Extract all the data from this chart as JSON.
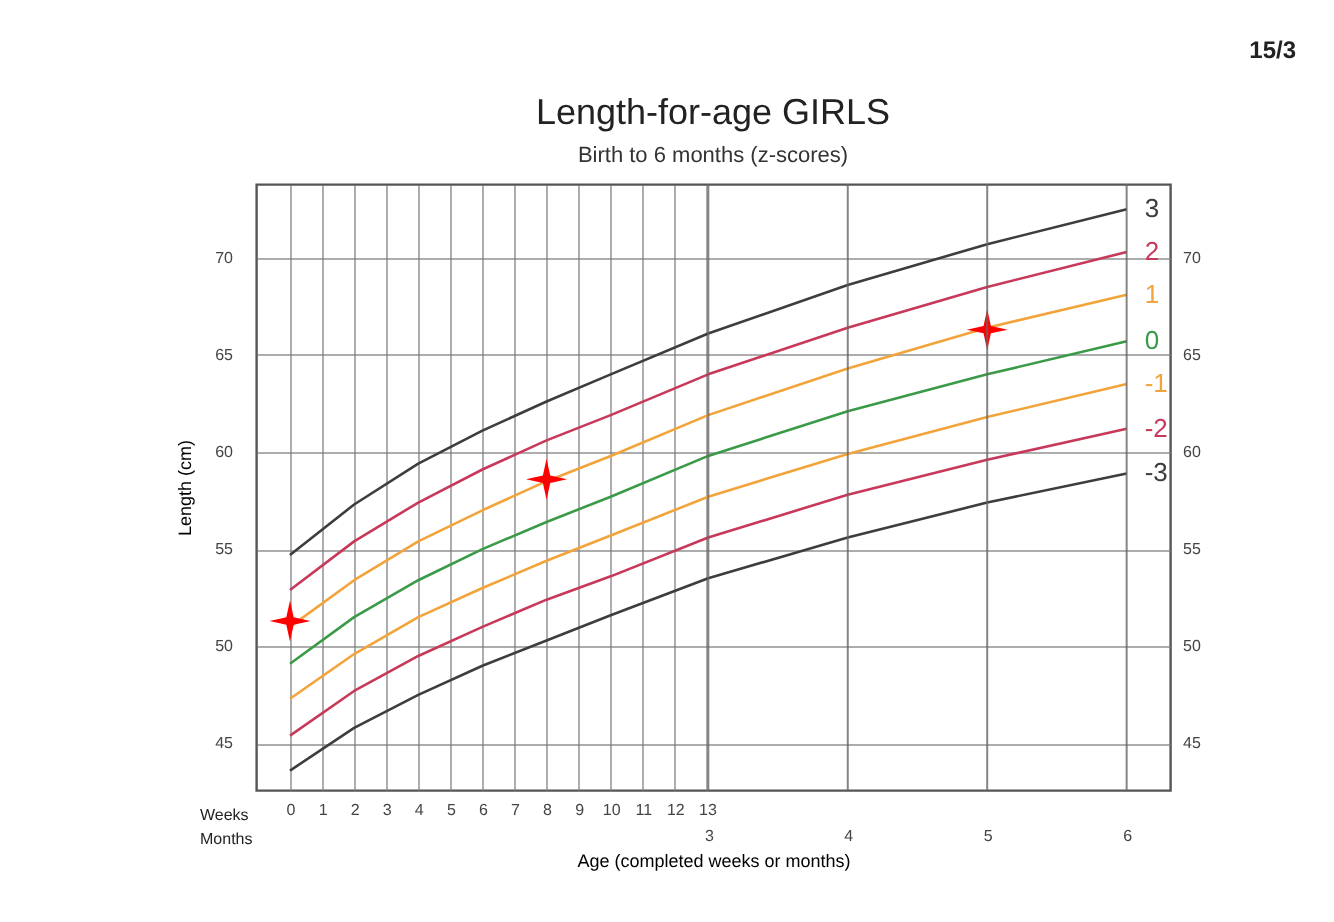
{
  "chart_data": {
    "type": "line",
    "title": "Length-for-age  GIRLS",
    "subtitle": "Birth to 6 months (z-scores)",
    "xlabel": "Age (completed weeks or months)",
    "ylabel": "Length (cm)",
    "annotations": [
      "15/3",
      "Weeks",
      "Months"
    ],
    "xlim": [
      -1.06,
      27.44
    ],
    "xticks": [
      0,
      1,
      2,
      3,
      4,
      5,
      6,
      7,
      8,
      9,
      10,
      11,
      12,
      13
    ],
    "x2lim": [
      -0.244,
      6.311
    ],
    "x2ticks": [
      3,
      4,
      5,
      6
    ],
    "ylim": [
      42.6,
      73.8
    ],
    "yticks": [
      45,
      50,
      55,
      60,
      65,
      70
    ],
    "y2lim": [
      42.6,
      73.8
    ],
    "y2ticks": [
      45,
      50,
      55,
      60,
      65,
      70
    ],
    "grid": true,
    "line_style": "solid",
    "series": [
      {
        "name": "3",
        "color": "#3d3d3d",
        "x": [
          0,
          2,
          4,
          6,
          8,
          10,
          13.04,
          17.39,
          21.74,
          26.09
        ],
        "values": [
          54.7,
          57.3,
          59.4,
          61.1,
          62.6,
          64.0,
          66.1,
          68.6,
          70.7,
          72.5
        ]
      },
      {
        "name": "2",
        "color": "#c8385a",
        "x": [
          0,
          2,
          4,
          6,
          8,
          10,
          13.04,
          17.39,
          21.74,
          26.09
        ],
        "values": [
          52.9,
          55.4,
          57.4,
          59.1,
          60.6,
          61.9,
          64.0,
          66.4,
          68.5,
          70.3
        ]
      },
      {
        "name": "1",
        "color": "#f2a43a",
        "x": [
          0,
          2,
          4,
          6,
          8,
          10,
          13.04,
          17.39,
          21.74,
          26.09
        ],
        "values": [
          51.0,
          53.4,
          55.4,
          57.0,
          58.5,
          59.8,
          61.9,
          64.3,
          66.4,
          68.1
        ]
      },
      {
        "name": "0",
        "color": "#3a9a48",
        "x": [
          0,
          2,
          4,
          6,
          8,
          10,
          13.04,
          17.39,
          21.74,
          26.09
        ],
        "values": [
          49.1,
          51.5,
          53.4,
          55.0,
          56.4,
          57.7,
          59.8,
          62.1,
          64.0,
          65.7
        ]
      },
      {
        "name": "-1",
        "color": "#f2a43a",
        "x": [
          0,
          2,
          4,
          6,
          8,
          10,
          13.04,
          17.39,
          21.74,
          26.09
        ],
        "values": [
          47.3,
          49.6,
          51.5,
          53.0,
          54.4,
          55.7,
          57.7,
          59.9,
          61.8,
          63.5
        ]
      },
      {
        "name": "-2",
        "color": "#c8385a",
        "x": [
          0,
          2,
          4,
          6,
          8,
          10,
          13.04,
          17.39,
          21.74,
          26.09
        ],
        "values": [
          45.4,
          47.7,
          49.5,
          51.0,
          52.4,
          53.6,
          55.6,
          57.8,
          59.6,
          61.2
        ]
      },
      {
        "name": "-3",
        "color": "#3d3d3d",
        "x": [
          0,
          2,
          4,
          6,
          8,
          10,
          13.04,
          17.39,
          21.74,
          26.09
        ],
        "values": [
          43.6,
          45.8,
          47.5,
          49.0,
          50.3,
          51.6,
          53.5,
          55.6,
          57.4,
          58.9
        ]
      },
      {
        "type": "scatter",
        "marker": "star",
        "color": "#ff0000",
        "x": [
          0,
          8,
          21.74
        ],
        "values": [
          51.3,
          58.6,
          66.3
        ]
      }
    ]
  }
}
